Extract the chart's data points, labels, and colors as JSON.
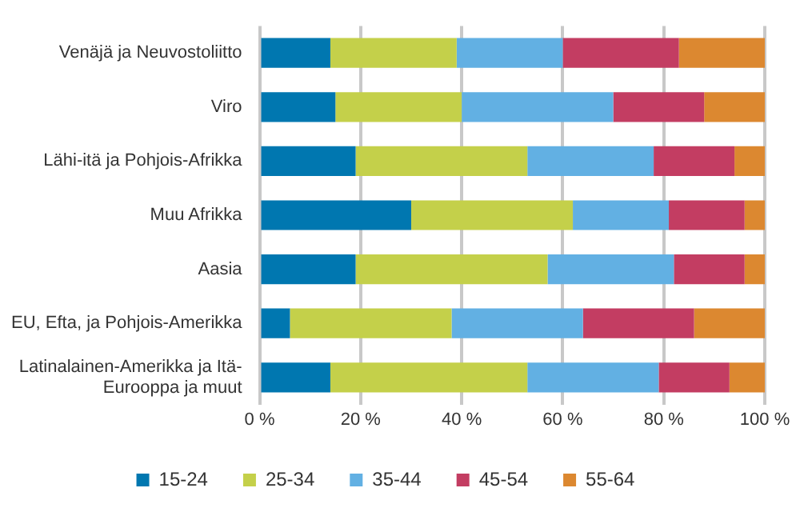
{
  "chart_data": {
    "type": "bar",
    "orientation": "horizontal",
    "stacked": true,
    "categories": [
      "Venäjä ja Neuvostoliitto",
      "Viro",
      "Lähi-itä ja Pohjois-Afrikka",
      "Muu Afrikka",
      "Aasia",
      "EU, Efta, ja Pohjois-Amerikka",
      "Latinalainen-Amerikka ja Itä-Eurooppa ja muut"
    ],
    "series": [
      {
        "name": "15-24",
        "color": "#0077b0",
        "values": [
          14,
          15,
          19,
          30,
          19,
          6,
          14
        ]
      },
      {
        "name": "25-34",
        "color": "#c4d04a",
        "values": [
          25,
          25,
          34,
          32,
          38,
          32,
          39
        ]
      },
      {
        "name": "35-44",
        "color": "#62b0e3",
        "values": [
          21,
          30,
          25,
          19,
          25,
          26,
          26
        ]
      },
      {
        "name": "45-54",
        "color": "#c33d62",
        "values": [
          23,
          18,
          16,
          15,
          14,
          22,
          14
        ]
      },
      {
        "name": "55-64",
        "color": "#dc8830",
        "values": [
          17,
          12,
          6,
          4,
          4,
          14,
          7
        ]
      }
    ],
    "xlim": [
      0,
      100
    ],
    "xticks": [
      {
        "value": 0,
        "label": "0 %"
      },
      {
        "value": 20,
        "label": "20 %"
      },
      {
        "value": 40,
        "label": "40 %"
      },
      {
        "value": 60,
        "label": "60 %"
      },
      {
        "value": 80,
        "label": "80 %"
      },
      {
        "value": 100,
        "label": "100 %"
      }
    ],
    "grid": "x",
    "legend": "bottom"
  }
}
